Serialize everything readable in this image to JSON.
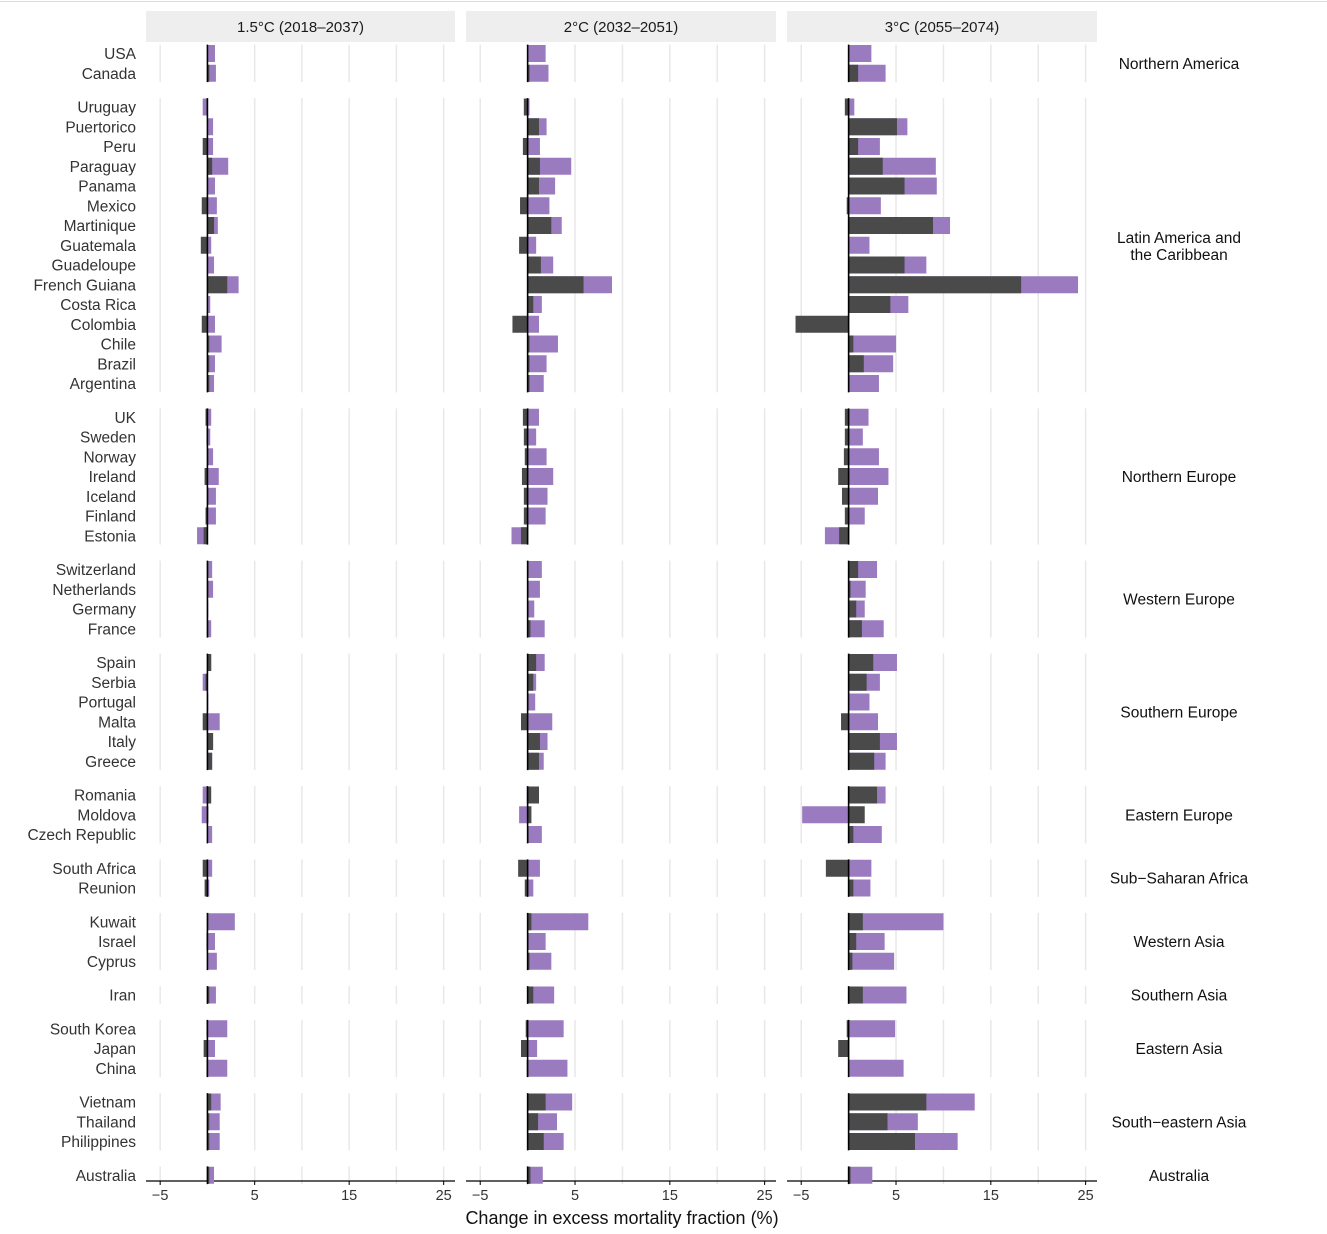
{
  "colors": {
    "dark_component": "#4a4a4a",
    "light_component": "#9b7bbf",
    "strip_background": "#eeeeee",
    "grid": "#e8e8e8",
    "zero_line": "#000000"
  },
  "chart_data": {
    "type": "bar",
    "orientation": "horizontal",
    "stacked": true,
    "xlabel": "Change in excess mortality fraction (%)",
    "xlim": [
      -6.5,
      26.2
    ],
    "xticks": [
      -5,
      5,
      15,
      25
    ],
    "grid": true,
    "panels": [
      "1.5°C (2018–2037)",
      "2°C (2032–2051)",
      "3°C (2055–2074)"
    ],
    "groups": [
      {
        "region": "Northern America",
        "countries": [
          "USA",
          "Canada"
        ],
        "values": [
          [
            [
              0,
              0.8
            ],
            [
              0.2,
              0.9
            ]
          ],
          [
            [
              0,
              1.9
            ],
            [
              0.2,
              2.2
            ]
          ],
          [
            [
              0,
              2.4
            ],
            [
              1.0,
              3.9
            ]
          ]
        ]
      },
      {
        "region": "Latin America and the Caribbean",
        "countries": [
          "Uruguay",
          "Puertorico",
          "Peru",
          "Paraguay",
          "Panama",
          "Mexico",
          "Martinique",
          "Guatemala",
          "Guadeloupe",
          "French Guiana",
          "Costa Rica",
          "Colombia",
          "Chile",
          "Brazil",
          "Argentina"
        ],
        "values": [
          [
            [
              -0.1,
              -0.5
            ],
            [
              0,
              0.6
            ],
            [
              -0.5,
              0.6
            ],
            [
              0.5,
              2.2
            ],
            [
              0,
              0.8
            ],
            [
              -0.6,
              1.0
            ],
            [
              0.7,
              1.1
            ],
            [
              -0.7,
              0.4
            ],
            [
              0,
              0.7
            ],
            [
              2.1,
              3.3
            ],
            [
              0,
              0.3
            ],
            [
              -0.6,
              0.8
            ],
            [
              0.2,
              1.5
            ],
            [
              0.2,
              0.8
            ],
            [
              0.2,
              0.7
            ]
          ],
          [
            [
              -0.4,
              0.2
            ],
            [
              1.2,
              2.0
            ],
            [
              -0.5,
              1.3
            ],
            [
              1.3,
              4.6
            ],
            [
              1.2,
              2.9
            ],
            [
              -0.8,
              2.3
            ],
            [
              2.5,
              3.6
            ],
            [
              -0.9,
              0.9
            ],
            [
              1.4,
              2.7
            ],
            [
              5.9,
              8.9
            ],
            [
              0.6,
              1.5
            ],
            [
              -1.6,
              1.2
            ],
            [
              0.2,
              3.2
            ],
            [
              0.2,
              2.0
            ],
            [
              0.2,
              1.7
            ]
          ],
          [
            [
              -0.4,
              0.6
            ],
            [
              5.1,
              6.2
            ],
            [
              1.0,
              3.3
            ],
            [
              3.6,
              9.2
            ],
            [
              5.9,
              9.3
            ],
            [
              -0.2,
              3.4
            ],
            [
              8.9,
              10.7
            ],
            [
              0,
              2.2
            ],
            [
              5.9,
              8.2
            ],
            [
              18.2,
              24.2
            ],
            [
              4.4,
              6.3
            ],
            [
              -5.6,
              0
            ],
            [
              0.5,
              5.0
            ],
            [
              1.6,
              4.7
            ],
            [
              0.1,
              3.2
            ]
          ]
        ]
      },
      {
        "region": "Northern Europe",
        "countries": [
          "UK",
          "Sweden",
          "Norway",
          "Ireland",
          "Iceland",
          "Finland",
          "Estonia"
        ],
        "values": [
          [
            [
              -0.2,
              0.4
            ],
            [
              -0.1,
              0.3
            ],
            [
              0.1,
              0.6
            ],
            [
              -0.3,
              1.2
            ],
            [
              0.1,
              0.9
            ],
            [
              -0.2,
              0.9
            ],
            [
              -0.4,
              -1.1
            ]
          ],
          [
            [
              -0.5,
              1.2
            ],
            [
              -0.4,
              0.9
            ],
            [
              -0.3,
              2.0
            ],
            [
              -0.6,
              2.7
            ],
            [
              -0.4,
              2.1
            ],
            [
              -0.4,
              1.9
            ],
            [
              -0.7,
              -1.7
            ]
          ],
          [
            [
              -0.4,
              2.1
            ],
            [
              -0.4,
              1.5
            ],
            [
              -0.5,
              3.2
            ],
            [
              -1.1,
              4.2
            ],
            [
              -0.7,
              3.1
            ],
            [
              -0.4,
              1.7
            ],
            [
              -1.0,
              -2.5
            ]
          ]
        ]
      },
      {
        "region": "Western Europe",
        "countries": [
          "Switzerland",
          "Netherlands",
          "Germany",
          "France"
        ],
        "values": [
          [
            [
              0.1,
              0.5
            ],
            [
              0.1,
              0.6
            ],
            [
              0,
              0.1
            ],
            [
              0.1,
              0.4
            ]
          ],
          [
            [
              0.1,
              1.5
            ],
            [
              0.1,
              1.3
            ],
            [
              0.1,
              0.7
            ],
            [
              0.3,
              1.8
            ]
          ],
          [
            [
              1.0,
              3.0
            ],
            [
              0.2,
              1.8
            ],
            [
              0.8,
              1.7
            ],
            [
              1.4,
              3.7
            ]
          ]
        ]
      },
      {
        "region": "Southern Europe",
        "countries": [
          "Spain",
          "Serbia",
          "Portugal",
          "Malta",
          "Italy",
          "Greece"
        ],
        "values": [
          [
            [
              0.4,
              0.4
            ],
            [
              -0.2,
              -0.5
            ],
            [
              0,
              0.1
            ],
            [
              -0.5,
              1.3
            ],
            [
              0.6,
              0.6
            ],
            [
              0.5,
              0.5
            ]
          ],
          [
            [
              0.9,
              1.8
            ],
            [
              0.6,
              0.9
            ],
            [
              0.1,
              0.8
            ],
            [
              -0.7,
              2.6
            ],
            [
              1.3,
              2.1
            ],
            [
              1.2,
              1.7
            ]
          ],
          [
            [
              2.6,
              5.1
            ],
            [
              1.9,
              3.3
            ],
            [
              0,
              2.2
            ],
            [
              -0.8,
              3.1
            ],
            [
              3.3,
              5.1
            ],
            [
              2.7,
              3.9
            ]
          ]
        ]
      },
      {
        "region": "Eastern Europe",
        "countries": [
          "Romania",
          "Moldova",
          "Czech Republic"
        ],
        "values": [
          [
            [
              0.4,
              -0.5
            ],
            [
              0.1,
              -0.6
            ],
            [
              0,
              0.5
            ]
          ],
          [
            [
              1.2,
              -0.1
            ],
            [
              0.4,
              -0.9
            ],
            [
              0.1,
              1.5
            ]
          ],
          [
            [
              3.0,
              3.9
            ],
            [
              1.7,
              -4.9
            ],
            [
              0.5,
              3.5
            ]
          ]
        ]
      },
      {
        "region": "Sub−Saharan Africa",
        "countries": [
          "South Africa",
          "Reunion"
        ],
        "values": [
          [
            [
              -0.5,
              0.5
            ],
            [
              -0.3,
              0.2
            ]
          ],
          [
            [
              -1.0,
              1.3
            ],
            [
              -0.3,
              0.6
            ]
          ],
          [
            [
              -2.4,
              2.4
            ],
            [
              0.5,
              2.3
            ]
          ]
        ]
      },
      {
        "region": "Western Asia",
        "countries": [
          "Kuwait",
          "Israel",
          "Cyprus"
        ],
        "values": [
          [
            [
              0.1,
              2.9
            ],
            [
              -0.1,
              0.8
            ],
            [
              0,
              1.0
            ]
          ],
          [
            [
              0.4,
              6.4
            ],
            [
              0.1,
              1.9
            ],
            [
              0.2,
              2.5
            ]
          ],
          [
            [
              1.5,
              10.0
            ],
            [
              0.8,
              3.8
            ],
            [
              0.4,
              4.8
            ]
          ]
        ]
      },
      {
        "region": "Southern Asia",
        "countries": [
          "Iran"
        ],
        "values": [
          [
            [
              0.2,
              0.9
            ]
          ],
          [
            [
              0.6,
              2.8
            ]
          ],
          [
            [
              1.5,
              6.1
            ]
          ]
        ]
      },
      {
        "region": "Eastern Asia",
        "countries": [
          "South Korea",
          "Japan",
          "China"
        ],
        "values": [
          [
            [
              -0.1,
              2.1
            ],
            [
              -0.4,
              0.8
            ],
            [
              -0.1,
              2.1
            ]
          ],
          [
            [
              -0.2,
              3.8
            ],
            [
              -0.7,
              1.0
            ],
            [
              -0.1,
              4.2
            ]
          ],
          [
            [
              -0.2,
              4.9
            ],
            [
              -1.1,
              0
            ],
            [
              0,
              5.8
            ]
          ]
        ]
      },
      {
        "region": "South−eastern Asia",
        "countries": [
          "Vietnam",
          "Thailand",
          "Philippines"
        ],
        "values": [
          [
            [
              0.4,
              1.4
            ],
            [
              0.2,
              1.3
            ],
            [
              0.2,
              1.3
            ]
          ],
          [
            [
              1.9,
              4.7
            ],
            [
              1.1,
              3.1
            ],
            [
              1.7,
              3.8
            ]
          ],
          [
            [
              8.2,
              13.3
            ],
            [
              4.1,
              7.3
            ],
            [
              7.0,
              11.5
            ]
          ]
        ]
      },
      {
        "region": "Australia",
        "countries": [
          "Australia"
        ],
        "values": [
          [
            [
              0.2,
              0.7
            ]
          ],
          [
            [
              0.3,
              1.6
            ]
          ],
          [
            [
              0.2,
              2.5
            ]
          ]
        ]
      }
    ]
  }
}
